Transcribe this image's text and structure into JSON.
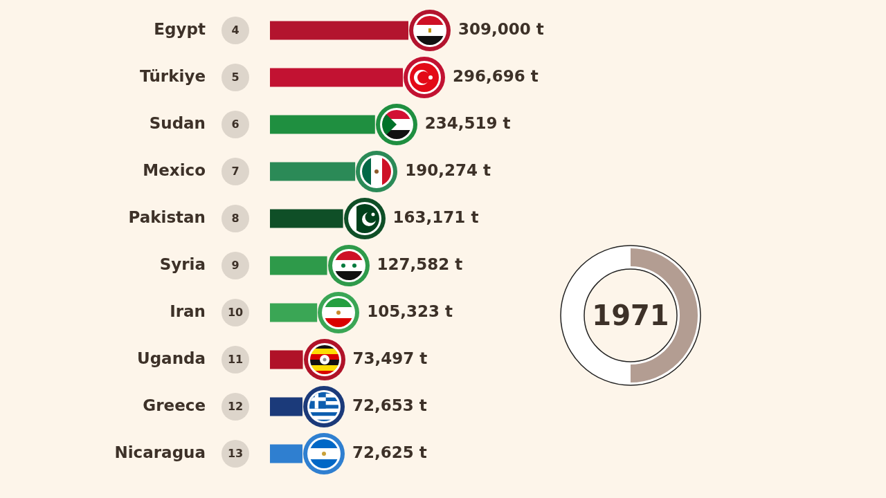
{
  "chart_data": {
    "type": "bar",
    "orientation": "horizontal",
    "categories": [
      "Egypt",
      "Türkiye",
      "Sudan",
      "Mexico",
      "Pakistan",
      "Syria",
      "Iran",
      "Uganda",
      "Greece",
      "Nicaragua"
    ],
    "values": [
      309000,
      296696,
      234519,
      190274,
      163171,
      127582,
      105323,
      73497,
      72653,
      72625
    ],
    "value_labels": [
      "309,000 t",
      "296,696 t",
      "234,519 t",
      "190,274 t",
      "163,171 t",
      "127,582 t",
      "105,323 t",
      "73,497 t",
      "72,653 t",
      "72,625 t"
    ],
    "colors": [
      "#b3142e",
      "#c21232",
      "#1f8f40",
      "#2b8a57",
      "#0f4f27",
      "#2e9a4a",
      "#3aa655",
      "#b01228",
      "#1b3a7a",
      "#2f7fd0"
    ],
    "tick_labels": "y",
    "annotations": [
      "4",
      "5",
      "6",
      "7",
      "8",
      "9",
      "10",
      "11",
      "12",
      "13",
      "1971"
    ]
  }
}
